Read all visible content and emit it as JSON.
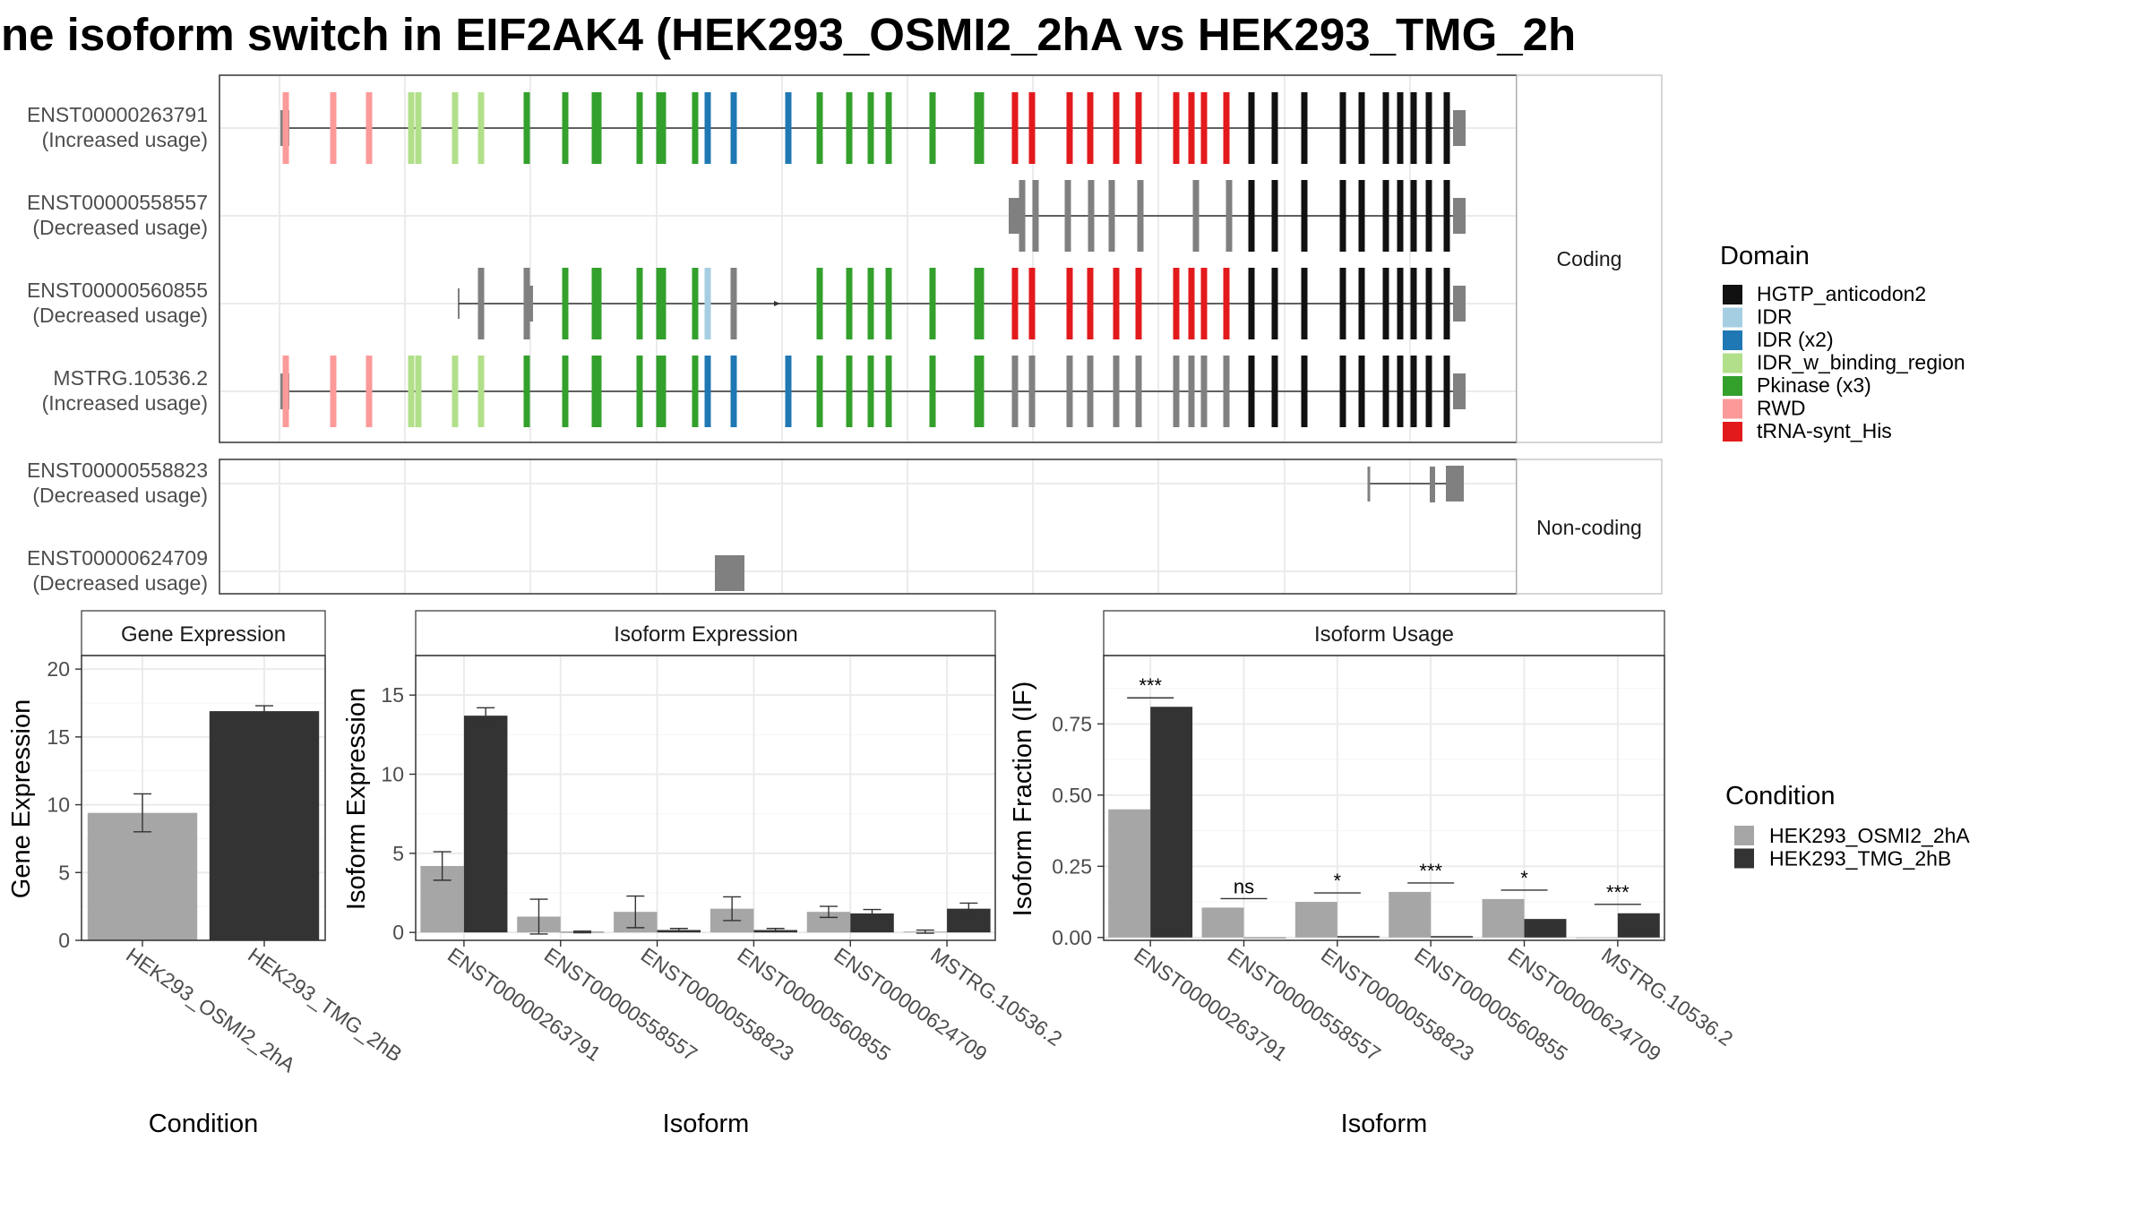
{
  "title": "ne isoform switch in EIF2AK4 (HEK293_OSMI2_2hA vs HEK293_TMG_2h",
  "colors": {
    "HGTP_anticodon2": "#111111",
    "IDR": "#a6cee3",
    "IDR (x2)": "#1f78b4",
    "IDR_w_binding_region": "#b2df8a",
    "Pkinase (x3)": "#33a02c",
    "RWD": "#fb9a99",
    "tRNA-synt_His": "#e31a1c",
    "none": "#808080",
    "cond_a": "#a6a6a6",
    "cond_b": "#333333"
  },
  "structure": {
    "coding_facet": "Coding",
    "noncoding_facet": "Non-coding",
    "coding": [
      {
        "id": "ENST00000263791",
        "label": "(Increased usage)"
      },
      {
        "id": "ENST00000558557",
        "label": "(Decreased usage)"
      },
      {
        "id": "ENST00000560855",
        "label": "(Decreased usage)"
      },
      {
        "id": "MSTRG.10536.2",
        "label": "(Increased usage)"
      }
    ],
    "noncoding": [
      {
        "id": "ENST00000558823",
        "label": "(Decreased usage)"
      },
      {
        "id": "ENST00000624709",
        "label": "(Decreased usage)"
      }
    ]
  },
  "domain_legend": {
    "title": "Domain",
    "items": [
      "HGTP_anticodon2",
      "IDR",
      "IDR (x2)",
      "IDR_w_binding_region",
      "Pkinase (x3)",
      "RWD",
      "tRNA-synt_His"
    ]
  },
  "condition_legend": {
    "title": "Condition",
    "items": [
      "HEK293_OSMI2_2hA",
      "HEK293_TMG_2hB"
    ]
  },
  "chart_data": [
    {
      "type": "bar",
      "title": "Gene Expression",
      "xlabel": "Condition",
      "ylabel": "Gene Expression",
      "categories": [
        "HEK293_OSMI2_2hA",
        "HEK293_TMG_2hB"
      ],
      "values": [
        9.4,
        16.9
      ],
      "errors": [
        1.4,
        0.4
      ],
      "ylim": [
        0,
        21
      ],
      "yticks": [
        0,
        5,
        10,
        15,
        20
      ]
    },
    {
      "type": "bar",
      "title": "Isoform Expression",
      "xlabel": "Isoform",
      "ylabel": "Isoform Expression",
      "categories": [
        "ENST00000263791",
        "ENST00000558557",
        "ENST00000558823",
        "ENST00000560855",
        "ENST00000624709",
        "MSTRG.10536.2"
      ],
      "series": [
        {
          "name": "HEK293_OSMI2_2hA",
          "values": [
            4.2,
            1.0,
            1.3,
            1.5,
            1.3,
            0.05
          ],
          "errors": [
            0.9,
            1.1,
            1.0,
            0.75,
            0.35,
            0.1
          ]
        },
        {
          "name": "HEK293_TMG_2hB",
          "values": [
            13.7,
            0.03,
            0.15,
            0.15,
            1.2,
            1.5
          ],
          "errors": [
            0.5,
            0.05,
            0.1,
            0.1,
            0.25,
            0.35
          ]
        }
      ],
      "ylim": [
        -0.5,
        17.5
      ],
      "yticks": [
        0,
        5,
        10,
        15
      ]
    },
    {
      "type": "bar",
      "title": "Isoform Usage",
      "xlabel": "Isoform",
      "ylabel": "Isoform Fraction (IF)",
      "categories": [
        "ENST00000263791",
        "ENST00000558557",
        "ENST00000558823",
        "ENST00000560855",
        "ENST00000624709",
        "MSTRG.10536.2"
      ],
      "series": [
        {
          "name": "HEK293_OSMI2_2hA",
          "values": [
            0.45,
            0.105,
            0.125,
            0.16,
            0.135,
            0.0
          ]
        },
        {
          "name": "HEK293_TMG_2hB",
          "values": [
            0.81,
            0.0,
            0.005,
            0.005,
            0.065,
            0.085
          ]
        }
      ],
      "significance": [
        "***",
        "ns",
        "*",
        "***",
        "*",
        "***"
      ],
      "ylim": [
        -0.01,
        0.99
      ],
      "yticks": [
        "0.00",
        "0.25",
        "0.50",
        "0.75"
      ]
    }
  ]
}
